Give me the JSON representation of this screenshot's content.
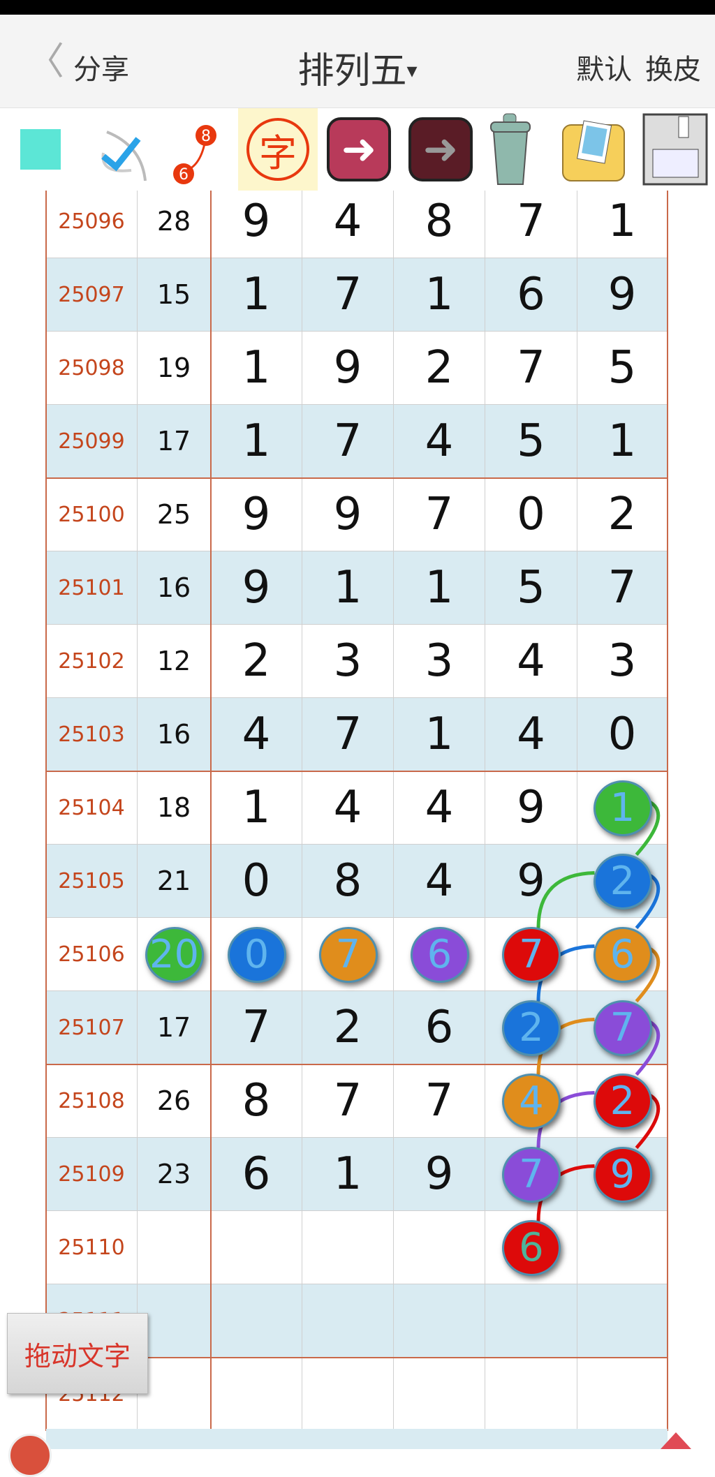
{
  "header": {
    "back_icon": "chevron-left-icon",
    "share": "分享",
    "title": "排列五",
    "title_arrow": "▾",
    "default": "默认",
    "skin": "换皮"
  },
  "toolbar": {
    "items": [
      "color-square-icon",
      "check-pen-icon",
      "connect-dots-icon",
      "text-char-icon",
      "back-arrow-icon",
      "forward-arrow-icon",
      "trash-icon",
      "photo-folder-icon",
      "floppy-save-icon"
    ],
    "color_square": "#5ce6d6",
    "char_badge": "字",
    "dots_from": "6",
    "dots_to": "8"
  },
  "colors": {
    "green": "#3db83a",
    "blue": "#1a74da",
    "orange": "#e08d1c",
    "purple": "#8a4cd8",
    "red": "#dd0a0a",
    "issue_text": "#c4451c",
    "grid_red": "#c9694a",
    "alt_row": "#d9ebf2"
  },
  "rows": [
    {
      "issue": "25096",
      "sum": "28",
      "digits": [
        "9",
        "4",
        "8",
        "7",
        "1"
      ]
    },
    {
      "issue": "25097",
      "sum": "15",
      "digits": [
        "1",
        "7",
        "1",
        "6",
        "9"
      ]
    },
    {
      "issue": "25098",
      "sum": "19",
      "digits": [
        "1",
        "9",
        "2",
        "7",
        "5"
      ]
    },
    {
      "issue": "25099",
      "sum": "17",
      "digits": [
        "1",
        "7",
        "4",
        "5",
        "1"
      ]
    },
    {
      "issue": "25100",
      "sum": "25",
      "digits": [
        "9",
        "9",
        "7",
        "0",
        "2"
      ]
    },
    {
      "issue": "25101",
      "sum": "16",
      "digits": [
        "9",
        "1",
        "1",
        "5",
        "7"
      ]
    },
    {
      "issue": "25102",
      "sum": "12",
      "digits": [
        "2",
        "3",
        "3",
        "4",
        "3"
      ]
    },
    {
      "issue": "25103",
      "sum": "16",
      "digits": [
        "4",
        "7",
        "1",
        "4",
        "0"
      ]
    },
    {
      "issue": "25104",
      "sum": "18",
      "digits": [
        "1",
        "4",
        "4",
        "9",
        ""
      ]
    },
    {
      "issue": "25105",
      "sum": "21",
      "digits": [
        "0",
        "8",
        "4",
        "9",
        ""
      ]
    },
    {
      "issue": "25106",
      "sum": "",
      "digits": [
        "",
        "",
        "",
        "",
        ""
      ]
    },
    {
      "issue": "25107",
      "sum": "17",
      "digits": [
        "7",
        "2",
        "6",
        "",
        ""
      ]
    },
    {
      "issue": "25108",
      "sum": "26",
      "digits": [
        "8",
        "7",
        "7",
        "",
        ""
      ]
    },
    {
      "issue": "25109",
      "sum": "23",
      "digits": [
        "6",
        "1",
        "9",
        "",
        ""
      ]
    },
    {
      "issue": "25110",
      "sum": "",
      "digits": [
        "",
        "",
        "",
        "",
        ""
      ]
    },
    {
      "issue": "25111",
      "sum": "",
      "digits": [
        "",
        "",
        "",
        "",
        ""
      ]
    },
    {
      "issue": "25112",
      "sum": "",
      "digits": [
        "",
        "",
        "",
        "",
        ""
      ]
    }
  ],
  "balls": [
    {
      "issue": "25104",
      "col": "d5",
      "value": "1",
      "color": "green"
    },
    {
      "issue": "25105",
      "col": "d5",
      "value": "2",
      "color": "blue"
    },
    {
      "issue": "25106",
      "col": "sum",
      "value": "20",
      "color": "green"
    },
    {
      "issue": "25106",
      "col": "d1",
      "value": "0",
      "color": "blue"
    },
    {
      "issue": "25106",
      "col": "d2",
      "value": "7",
      "color": "orange"
    },
    {
      "issue": "25106",
      "col": "d3",
      "value": "6",
      "color": "purple"
    },
    {
      "issue": "25106",
      "col": "d4",
      "value": "7",
      "color": "red"
    },
    {
      "issue": "25106",
      "col": "d5",
      "value": "6",
      "color": "orange"
    },
    {
      "issue": "25107",
      "col": "d4",
      "value": "2",
      "color": "blue"
    },
    {
      "issue": "25107",
      "col": "d5",
      "value": "7",
      "color": "purple"
    },
    {
      "issue": "25108",
      "col": "d4",
      "value": "4",
      "color": "orange"
    },
    {
      "issue": "25108",
      "col": "d5",
      "value": "2",
      "color": "red"
    },
    {
      "issue": "25109",
      "col": "d4",
      "value": "7",
      "color": "purple"
    },
    {
      "issue": "25109",
      "col": "d5",
      "value": "9",
      "color": "red"
    },
    {
      "issue": "25110",
      "col": "d4",
      "value": "6",
      "color": "red"
    }
  ],
  "drag_button": "拖动文字"
}
